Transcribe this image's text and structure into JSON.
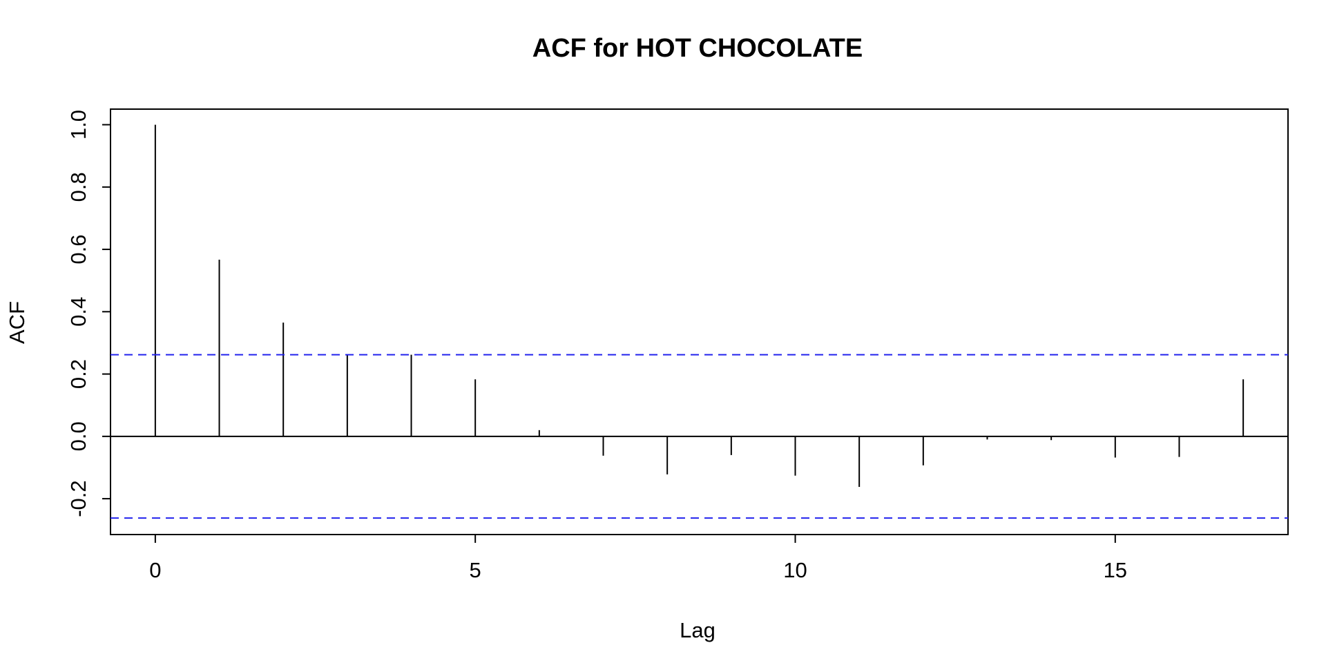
{
  "chart_data": {
    "type": "bar",
    "title": "ACF for HOT CHOCOLATE",
    "xlabel": "Lag",
    "ylabel": "ACF",
    "x": [
      0,
      1,
      2,
      3,
      4,
      5,
      6,
      7,
      8,
      9,
      10,
      11,
      12,
      13,
      14,
      15,
      16,
      17
    ],
    "values": [
      1.0,
      0.567,
      0.365,
      0.262,
      0.262,
      0.183,
      0.02,
      -0.062,
      -0.122,
      -0.06,
      -0.126,
      -0.162,
      -0.093,
      -0.01,
      -0.012,
      -0.068,
      -0.066,
      0.183
    ],
    "confidence_bounds": [
      0.262,
      -0.262
    ],
    "xlim": [
      -0.7,
      17.7
    ],
    "ylim": [
      -0.315,
      1.05
    ],
    "x_ticks": [
      0,
      5,
      10,
      15
    ],
    "x_tick_labels": [
      "0",
      "5",
      "10",
      "15"
    ],
    "y_ticks": [
      -0.2,
      0.0,
      0.2,
      0.4,
      0.6,
      0.8,
      1.0
    ],
    "y_tick_labels": [
      "-0.2",
      "0.0",
      "0.2",
      "0.4",
      "0.6",
      "0.8",
      "1.0"
    ],
    "grid": false,
    "legend": "none",
    "colors": {
      "spikes": "#000000",
      "confidence_lines": "#2222ee"
    }
  }
}
